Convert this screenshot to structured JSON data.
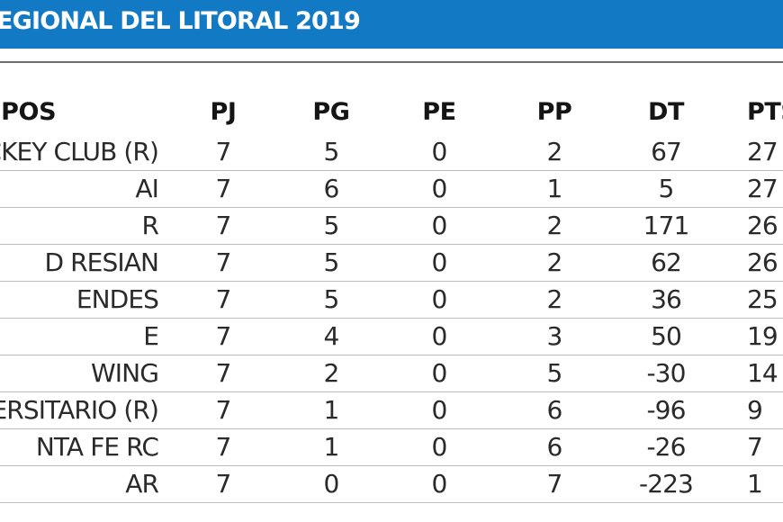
{
  "header": {
    "title": "EGIONAL DEL LITORAL 2019"
  },
  "table": {
    "columns": [
      "UIPOS",
      "PJ",
      "PG",
      "PE",
      "PP",
      "DT",
      "PTS"
    ],
    "rows": [
      {
        "team": "CKEY CLUB (R)",
        "pj": "7",
        "pg": "5",
        "pe": "0",
        "pp": "2",
        "dt": "67",
        "pts": "27"
      },
      {
        "team": "AI",
        "pj": "7",
        "pg": "6",
        "pe": "0",
        "pp": "1",
        "dt": "5",
        "pts": "27"
      },
      {
        "team": "R",
        "pj": "7",
        "pg": "5",
        "pe": "0",
        "pp": "2",
        "dt": "171",
        "pts": "26"
      },
      {
        "team": "D RESIAN",
        "pj": "7",
        "pg": "5",
        "pe": "0",
        "pp": "2",
        "dt": "62",
        "pts": "26"
      },
      {
        "team": "ENDES",
        "pj": "7",
        "pg": "5",
        "pe": "0",
        "pp": "2",
        "dt": "36",
        "pts": "25"
      },
      {
        "team": "E",
        "pj": "7",
        "pg": "4",
        "pe": "0",
        "pp": "3",
        "dt": "50",
        "pts": "19"
      },
      {
        "team": "WING",
        "pj": "7",
        "pg": "2",
        "pe": "0",
        "pp": "5",
        "dt": "-30",
        "pts": "14"
      },
      {
        "team": "VERSITARIO (R)",
        "pj": "7",
        "pg": "1",
        "pe": "0",
        "pp": "6",
        "dt": "-96",
        "pts": "9"
      },
      {
        "team": "NTA FE RC",
        "pj": "7",
        "pg": "1",
        "pe": "0",
        "pp": "6",
        "dt": "-26",
        "pts": "7"
      },
      {
        "team": "AR",
        "pj": "7",
        "pg": "0",
        "pe": "0",
        "pp": "7",
        "dt": "-223",
        "pts": "1"
      }
    ]
  }
}
